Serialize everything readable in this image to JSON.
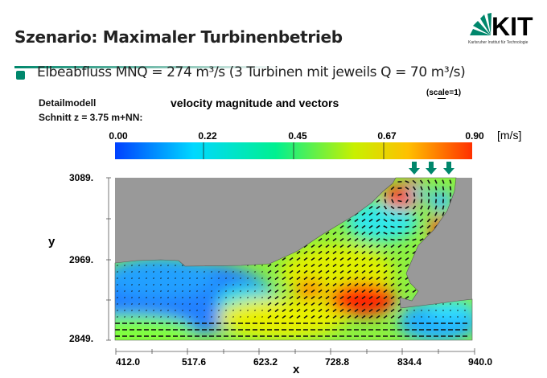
{
  "slide": {
    "title": "Szenario: Maximaler Turbinenbetrieb",
    "logo_text": "KIT",
    "logo_subtitle": "Karlsruher Institut für Technologie",
    "bullet": "Elbeabfluss MNQ = 274 m³/s (3 Turbinen mit jeweils Q = 70 m³/s)",
    "model_label": "Detailmodell",
    "section_label": "Schnitt z = 3.75 m+NN:",
    "brand_color": "#00876c"
  },
  "plot": {
    "title": "velocity magnitude and vectors",
    "scale_label": "(scale=1)",
    "colorbar": {
      "ticks": [
        "0.00",
        "0.22",
        "0.45",
        "0.67",
        "0.90"
      ],
      "unit": "[m/s]",
      "colors": [
        "#0040ff",
        "#00e0ff",
        "#00ff80",
        "#ccff00",
        "#ffd000",
        "#ff3000"
      ]
    },
    "x_label": "x",
    "y_label": "y",
    "x_ticks": [
      "412.0",
      "517.6",
      "623.2",
      "728.8",
      "834.4",
      "940.0"
    ],
    "y_ticks": [
      "3089.",
      "2969.",
      "2849."
    ],
    "turbine_arrow_count": 3,
    "land_color": "#999999"
  }
}
